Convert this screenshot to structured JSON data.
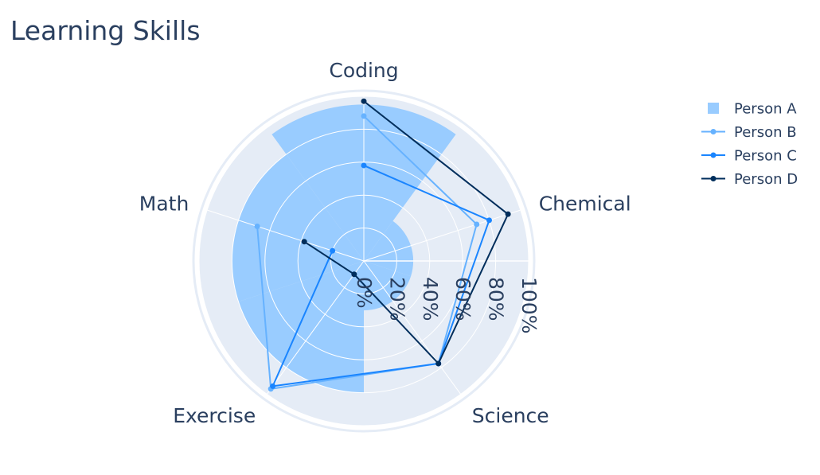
{
  "chart_data": {
    "type": "polar",
    "title": "Learning Skills",
    "categories": [
      "Coding",
      "Chemical",
      "Science",
      "Exercise",
      "Math"
    ],
    "radial_axis": {
      "range": [
        0,
        100
      ],
      "ticks": [
        "0%",
        "20%",
        "40%",
        "60%",
        "80%",
        "100%"
      ]
    },
    "series": [
      {
        "name": "Person A",
        "type": "bar",
        "color": "#99ccff",
        "values": [
          95,
          30,
          30,
          80,
          80
        ]
      },
      {
        "name": "Person B",
        "type": "line",
        "color": "#66b2ff",
        "values": [
          88,
          72,
          77,
          96,
          68
        ]
      },
      {
        "name": "Person C",
        "type": "line",
        "color": "#1a85ff",
        "values": [
          58,
          80,
          77,
          94,
          20
        ]
      },
      {
        "name": "Person D",
        "type": "line",
        "color": "#002e5c",
        "values": [
          97,
          92,
          77,
          10,
          38
        ]
      }
    ],
    "legend_position": "top-right",
    "grid": true
  }
}
